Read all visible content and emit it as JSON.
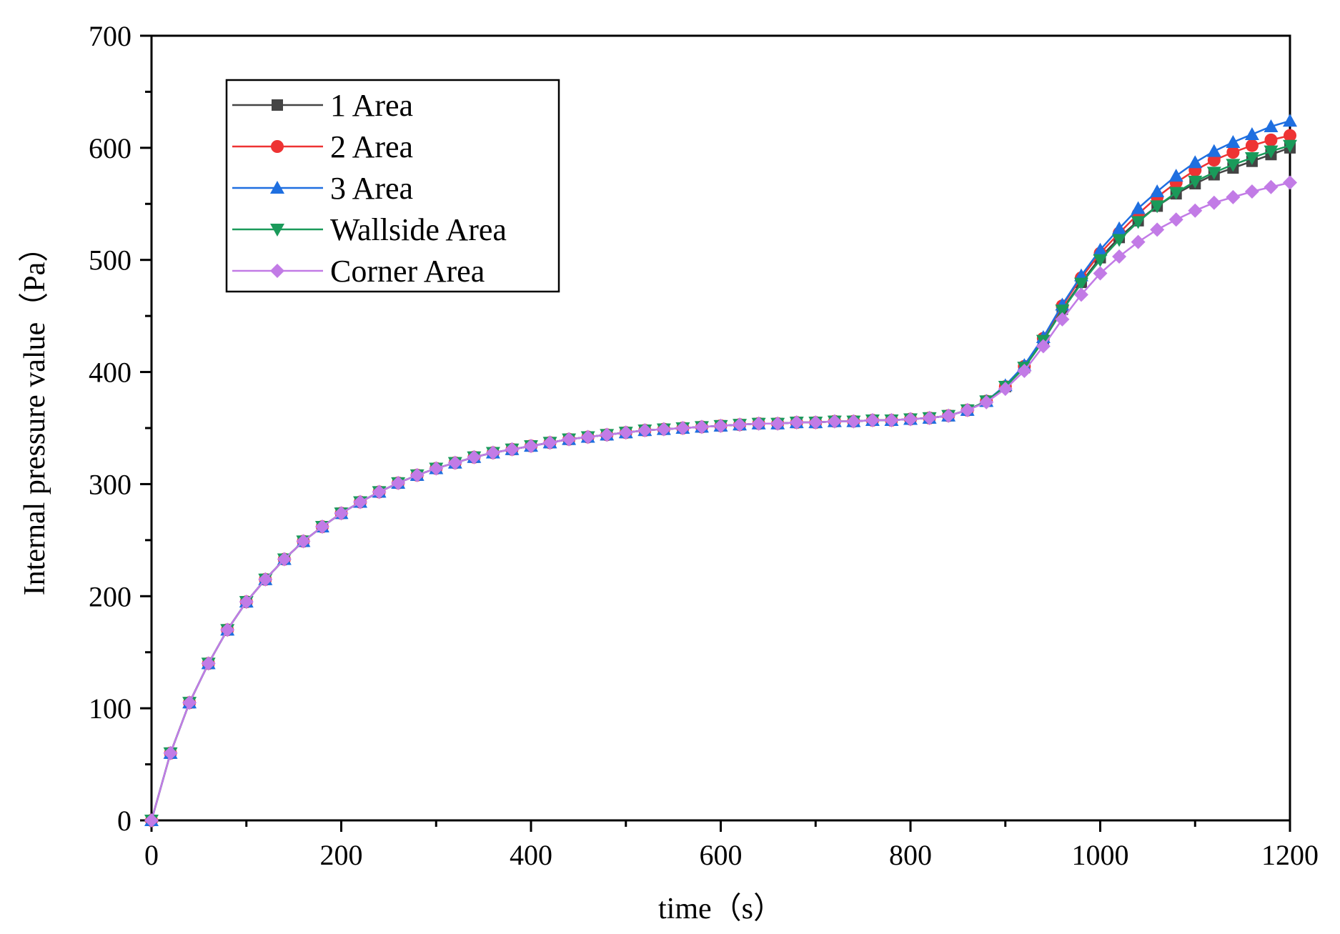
{
  "chart_data": {
    "type": "line",
    "title": "",
    "xlabel": "time（s）",
    "ylabel": "Internal pressure value（Pa）",
    "xlim": [
      0,
      1200
    ],
    "ylim": [
      0,
      700
    ],
    "xticks": [
      0,
      200,
      400,
      600,
      800,
      1000,
      1200
    ],
    "xtick_labels": [
      "0",
      "200",
      "400",
      "600",
      "800",
      "1000",
      "1200"
    ],
    "yticks": [
      0,
      100,
      200,
      300,
      400,
      500,
      600,
      700
    ],
    "ytick_labels": [
      "0",
      "100",
      "200",
      "300",
      "400",
      "500",
      "600",
      "700"
    ],
    "grid": false,
    "legend_position": "top-left",
    "x": [
      0,
      20,
      40,
      60,
      80,
      100,
      120,
      140,
      160,
      180,
      200,
      220,
      240,
      260,
      280,
      300,
      320,
      340,
      360,
      380,
      400,
      420,
      440,
      460,
      480,
      500,
      520,
      540,
      560,
      580,
      600,
      620,
      640,
      660,
      680,
      700,
      720,
      740,
      760,
      780,
      800,
      820,
      840,
      860,
      880,
      900,
      920,
      940,
      960,
      980,
      1000,
      1020,
      1040,
      1060,
      1080,
      1100,
      1120,
      1140,
      1160,
      1180,
      1200
    ],
    "series": [
      {
        "name": "1 Area",
        "color": "#444444",
        "marker": "square",
        "values": [
          0,
          60,
          105,
          140,
          170,
          195,
          215,
          233,
          249,
          262,
          274,
          284,
          293,
          301,
          308,
          314,
          319,
          324,
          328,
          331,
          334,
          337,
          340,
          342,
          344,
          346,
          348,
          349,
          350,
          351,
          352,
          353,
          354,
          354,
          355,
          355,
          356,
          356,
          357,
          357,
          358,
          359,
          361,
          366,
          374,
          387,
          404,
          428,
          456,
          480,
          502,
          520,
          535,
          548,
          559,
          568,
          576,
          582,
          588,
          594,
          600
        ]
      },
      {
        "name": "2 Area",
        "color": "#ee3333",
        "marker": "circle",
        "values": [
          0,
          60,
          105,
          140,
          170,
          195,
          215,
          233,
          249,
          262,
          274,
          284,
          293,
          301,
          308,
          314,
          319,
          324,
          328,
          331,
          334,
          337,
          340,
          342,
          344,
          346,
          348,
          349,
          350,
          351,
          352,
          353,
          354,
          354,
          355,
          355,
          356,
          356,
          357,
          357,
          358,
          359,
          361,
          366,
          374,
          387,
          405,
          430,
          459,
          484,
          506,
          524,
          541,
          556,
          569,
          580,
          589,
          596,
          602,
          607,
          611
        ]
      },
      {
        "name": "3 Area",
        "color": "#1f6fe0",
        "marker": "triangle-up",
        "values": [
          0,
          60,
          105,
          140,
          170,
          195,
          215,
          233,
          249,
          262,
          274,
          284,
          293,
          301,
          308,
          314,
          319,
          324,
          328,
          331,
          334,
          337,
          340,
          342,
          344,
          346,
          348,
          349,
          350,
          351,
          352,
          353,
          354,
          354,
          355,
          355,
          356,
          356,
          357,
          357,
          358,
          359,
          361,
          366,
          374,
          388,
          406,
          431,
          460,
          486,
          509,
          528,
          546,
          561,
          575,
          587,
          597,
          605,
          612,
          619,
          624
        ]
      },
      {
        "name": "Wallside Area",
        "color": "#1a9a5a",
        "marker": "triangle-down",
        "values": [
          0,
          60,
          105,
          140,
          170,
          195,
          215,
          233,
          249,
          262,
          274,
          284,
          293,
          301,
          308,
          314,
          319,
          324,
          328,
          331,
          334,
          337,
          340,
          342,
          344,
          346,
          348,
          349,
          350,
          351,
          352,
          353,
          354,
          354,
          355,
          355,
          356,
          356,
          357,
          357,
          358,
          359,
          361,
          366,
          374,
          387,
          404,
          428,
          455,
          479,
          500,
          518,
          534,
          548,
          560,
          570,
          578,
          585,
          591,
          597,
          602
        ]
      },
      {
        "name": "Corner Area",
        "color": "#c27be6",
        "marker": "diamond",
        "values": [
          0,
          60,
          105,
          140,
          170,
          195,
          215,
          233,
          249,
          262,
          274,
          284,
          293,
          301,
          308,
          314,
          319,
          324,
          328,
          331,
          334,
          337,
          340,
          342,
          344,
          346,
          348,
          349,
          350,
          351,
          352,
          353,
          354,
          354,
          355,
          355,
          356,
          356,
          357,
          357,
          358,
          359,
          361,
          366,
          373,
          385,
          401,
          423,
          447,
          469,
          488,
          503,
          516,
          527,
          536,
          544,
          551,
          556,
          561,
          565,
          569
        ]
      }
    ]
  }
}
